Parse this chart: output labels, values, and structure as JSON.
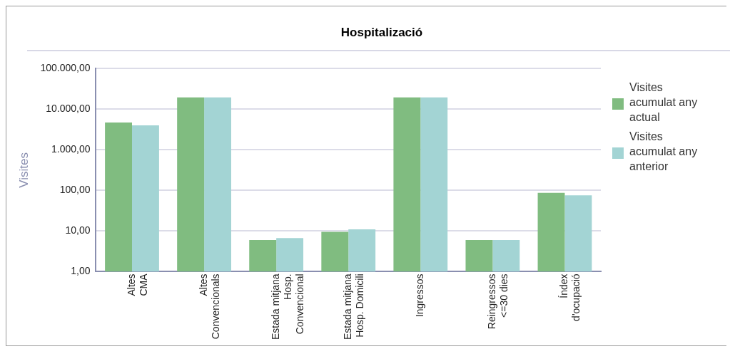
{
  "chart_data": {
    "type": "bar",
    "title": "Hospitalizació",
    "ylabel": "Visites",
    "categories": [
      "Altes\nCMA",
      "Altes\nConvencionals",
      "Estada mitjana\nHosp.\nConvencional",
      "Estada mitjana\nHosp. Domicili",
      "Ingressos",
      "Reingressos\n<=30 dies",
      "Índex\nd'ocupació"
    ],
    "series": [
      {
        "name": "Visites acumulat any actual",
        "color": "#80bc80",
        "values": [
          4700,
          19500,
          6,
          9.6,
          19500,
          6,
          87
        ]
      },
      {
        "name": "Visites acumulat any anterior",
        "color": "#a3d4d4",
        "values": [
          4000,
          19500,
          6.7,
          11,
          19500,
          6,
          76
        ]
      }
    ],
    "log": true,
    "ylim": [
      1,
      100000
    ],
    "yticks": [
      {
        "value": 1,
        "label": "1,00"
      },
      {
        "value": 10,
        "label": "10,00"
      },
      {
        "value": 100,
        "label": "100,00"
      },
      {
        "value": 1000,
        "label": "1.000,00"
      },
      {
        "value": 10000,
        "label": "10.000,00"
      },
      {
        "value": 100000,
        "label": "100.000,00"
      }
    ],
    "grid": "y",
    "legend": "right"
  }
}
